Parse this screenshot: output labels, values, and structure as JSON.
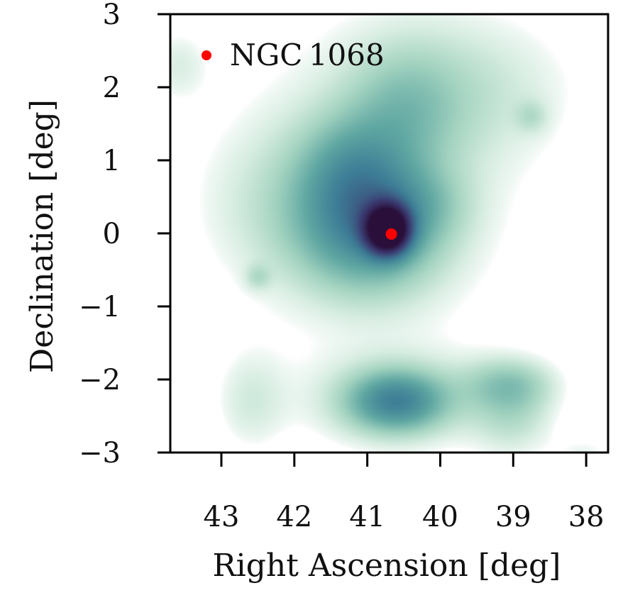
{
  "chart_data": {
    "type": "heatmap",
    "title": "",
    "xlabel": "Right Ascension [deg]",
    "ylabel": "Declination [deg]",
    "xlim": [
      43.7,
      37.7
    ],
    "ylim": [
      -3,
      3
    ],
    "x_inverted": true,
    "x_ticks": [
      43,
      42,
      41,
      40,
      39,
      38
    ],
    "x_tick_labels": [
      "43",
      "42",
      "41",
      "40",
      "39",
      "38"
    ],
    "y_ticks": [
      3,
      2,
      1,
      0,
      -1,
      -2,
      -3
    ],
    "y_tick_labels": [
      "3",
      "2",
      "1",
      "0",
      "−1",
      "−2",
      "−3"
    ],
    "colormap": [
      "#ffffff",
      "#d9eee3",
      "#a3d3c0",
      "#5fa7a2",
      "#3d7d96",
      "#3b3c72",
      "#2a0f3a"
    ],
    "density_components": [
      {
        "ra": 40.72,
        "dec": 0.05,
        "sigma_ra": 0.2,
        "sigma_dec": 0.22,
        "amplitude": 1.0
      },
      {
        "ra": 40.95,
        "dec": 0.1,
        "sigma_ra": 0.65,
        "sigma_dec": 0.6,
        "amplitude": 0.38
      },
      {
        "ra": 41.2,
        "dec": 0.9,
        "sigma_ra": 0.5,
        "sigma_dec": 0.5,
        "amplitude": 0.18
      },
      {
        "ra": 40.5,
        "dec": 1.7,
        "sigma_ra": 0.55,
        "sigma_dec": 0.6,
        "amplitude": 0.15
      },
      {
        "ra": 40.8,
        "dec": 0.8,
        "sigma_ra": 1.5,
        "sigma_dec": 1.8,
        "amplitude": 0.1
      },
      {
        "ra": 42.0,
        "dec": 0.4,
        "sigma_ra": 0.9,
        "sigma_dec": 0.8,
        "amplitude": 0.1
      },
      {
        "ra": 39.5,
        "dec": 2.0,
        "sigma_ra": 1.0,
        "sigma_dec": 0.7,
        "amplitude": 0.09
      },
      {
        "ra": 38.75,
        "dec": 1.6,
        "sigma_ra": 0.15,
        "sigma_dec": 0.15,
        "amplitude": 0.09
      },
      {
        "ra": 40.2,
        "dec": 0.4,
        "sigma_ra": 0.45,
        "sigma_dec": 0.35,
        "amplitude": 0.08
      },
      {
        "ra": 43.6,
        "dec": 2.3,
        "sigma_ra": 0.3,
        "sigma_dec": 0.35,
        "amplitude": 0.09
      },
      {
        "ra": 42.5,
        "dec": -0.6,
        "sigma_ra": 0.12,
        "sigma_dec": 0.12,
        "amplitude": 0.1
      },
      {
        "ra": 40.6,
        "dec": -2.3,
        "sigma_ra": 0.45,
        "sigma_dec": 0.28,
        "amplitude": 0.35
      },
      {
        "ra": 40.6,
        "dec": -2.3,
        "sigma_ra": 0.85,
        "sigma_dec": 0.45,
        "amplitude": 0.15
      },
      {
        "ra": 39.05,
        "dec": -2.05,
        "sigma_ra": 0.45,
        "sigma_dec": 0.25,
        "amplitude": 0.17
      },
      {
        "ra": 39.0,
        "dec": -2.5,
        "sigma_ra": 0.4,
        "sigma_dec": 0.4,
        "amplitude": 0.14
      },
      {
        "ra": 42.6,
        "dec": -2.3,
        "sigma_ra": 0.35,
        "sigma_dec": 0.5,
        "amplitude": 0.1
      },
      {
        "ra": 38.0,
        "dec": -3.0,
        "sigma_ra": 0.3,
        "sigma_dec": 0.15,
        "amplitude": 0.07
      }
    ],
    "markers": [
      {
        "label": "NGC 1068",
        "ra": 40.67,
        "dec": -0.01,
        "color": "#ff0000"
      }
    ],
    "legend": {
      "position": "top-left",
      "entries": [
        {
          "label": "NGC 1068",
          "color": "#ff0000",
          "marker": "dot"
        }
      ]
    },
    "grid": false
  }
}
